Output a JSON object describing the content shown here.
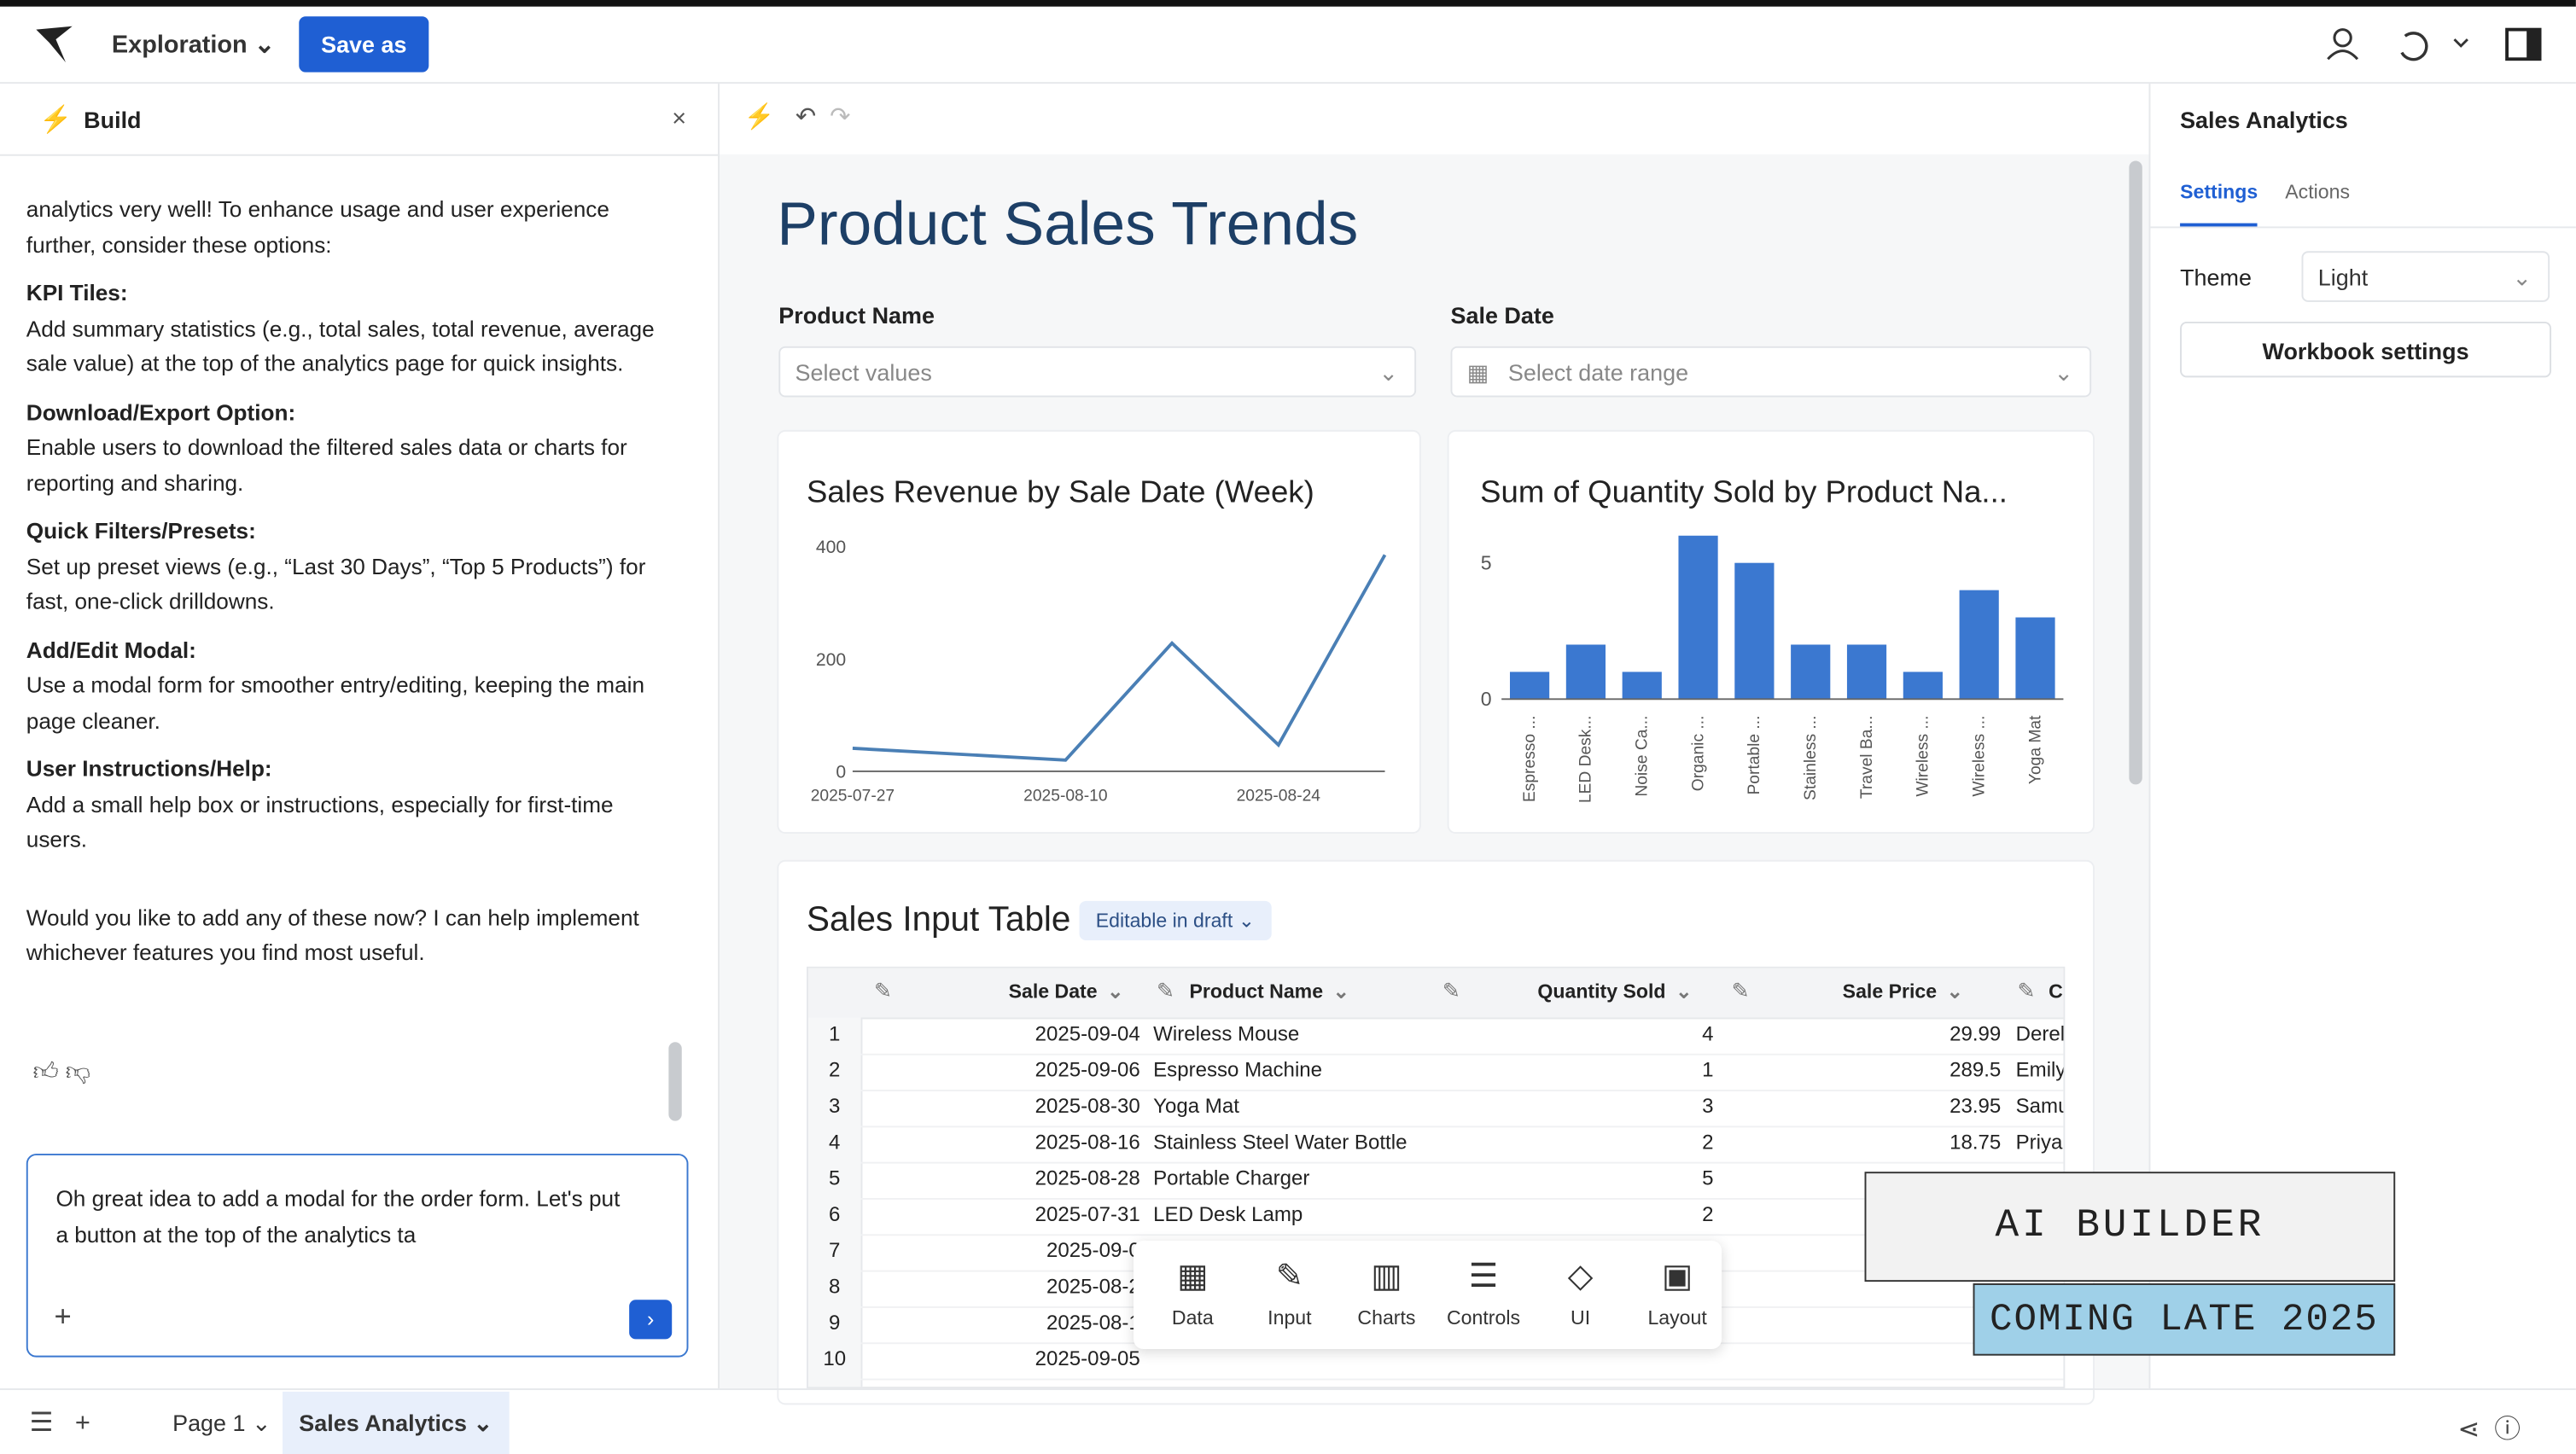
{
  "topbar": {
    "mode": "Exploration",
    "save": "Save as"
  },
  "build_panel": {
    "title": "Build",
    "messages": [
      {
        "text": "analytics very well! To enhance usage and user experience further, consider these options:"
      },
      {
        "heading": "KPI Tiles:",
        "text": "Add summary statistics (e.g., total sales, total revenue, average sale value) at the top of the analytics page for quick insights."
      },
      {
        "heading": "Download/Export Option:",
        "text": "Enable users to download the filtered sales data or charts for reporting and sharing."
      },
      {
        "heading": "Quick Filters/Presets:",
        "text": "Set up preset views (e.g., “Last 30 Days”, “Top 5 Products”) for fast, one-click drilldowns."
      },
      {
        "heading": "Add/Edit Modal:",
        "text": "Use a modal form for smoother entry/editing, keeping the main page cleaner."
      },
      {
        "heading": "User Instructions/Help:",
        "text": "Add a small help box or instructions, especially for first-time users."
      },
      {
        "text": "Would you like to add any of these now? I can help implement whichever features you find most useful."
      }
    ],
    "input": "Oh great idea to add a modal for the order form. Let's put a button at the top of the analytics ta"
  },
  "canvas": {
    "title": "Product Sales Trends",
    "filters": [
      {
        "label": "Product Name",
        "placeholder": "Select values"
      },
      {
        "label": "Sale Date",
        "placeholder": "Select date range"
      }
    ]
  },
  "chart_data": [
    {
      "type": "line",
      "title": "Sales Revenue by Sale Date (Week)",
      "color": "#4a7fb5",
      "x": [
        "2025-07-27",
        "2025-08-10",
        "2025-08-17",
        "2025-08-24",
        "2025-08-31"
      ],
      "values": [
        41,
        20,
        228,
        47,
        385
      ],
      "xlim": [
        "2025-07-27",
        "2025-08-31"
      ],
      "xticks": [
        "2025-07-27",
        "2025-08-10",
        "2025-08-24"
      ],
      "ylim": [
        0,
        400
      ],
      "yticks": [
        0,
        200,
        400
      ]
    },
    {
      "type": "bar",
      "title": "Sum of Quantity Sold by Product Na...",
      "color": "#3b78d0",
      "categories": [
        "Espresso ...",
        "LED Desk...",
        "Noise Ca...",
        "Organic ...",
        "Portable ...",
        "Stainless ...",
        "Travel Ba...",
        "Wireless ...",
        "Wireless ...",
        "Yoga Mat"
      ],
      "values": [
        1,
        2,
        1,
        6,
        5,
        2,
        2,
        1,
        4,
        3
      ],
      "ylim": [
        0,
        6
      ],
      "yticks": [
        0,
        5
      ]
    }
  ],
  "table": {
    "title": "Sales Input Table",
    "badge": "Editable in draft",
    "columns": [
      "Sale Date",
      "Product Name",
      "Quantity Sold",
      "Sale Price",
      "C"
    ],
    "rows": [
      [
        "1",
        "2025-09-04",
        "Wireless Mouse",
        "4",
        "29.99",
        "Derel"
      ],
      [
        "2",
        "2025-09-06",
        "Espresso Machine",
        "1",
        "289.5",
        "Emily"
      ],
      [
        "3",
        "2025-08-30",
        "Yoga Mat",
        "3",
        "23.95",
        "Samu"
      ],
      [
        "4",
        "2025-08-16",
        "Stainless Steel Water Bottle",
        "2",
        "18.75",
        "Priya"
      ],
      [
        "5",
        "2025-08-28",
        "Portable Charger",
        "5"
      ],
      [
        "6",
        "2025-07-31",
        "LED Desk Lamp",
        "2"
      ],
      [
        "7",
        "2025-09-0"
      ],
      [
        "8",
        "2025-08-2"
      ],
      [
        "9",
        "2025-08-1"
      ],
      [
        "10",
        "2025-09-05"
      ]
    ]
  },
  "insert_toolbar": [
    "Data",
    "Input",
    "Charts",
    "Controls",
    "UI",
    "Layout"
  ],
  "right_panel": {
    "title": "Sales Analytics",
    "tabs": [
      "Settings",
      "Actions"
    ],
    "theme_label": "Theme",
    "theme_value": "Light",
    "button": "Workbook settings"
  },
  "overlay": {
    "line1": "AI BUILDER",
    "line2": "COMING LATE 2025"
  },
  "bottom_bar": {
    "pages": [
      "Page 1",
      "Sales Analytics"
    ]
  }
}
